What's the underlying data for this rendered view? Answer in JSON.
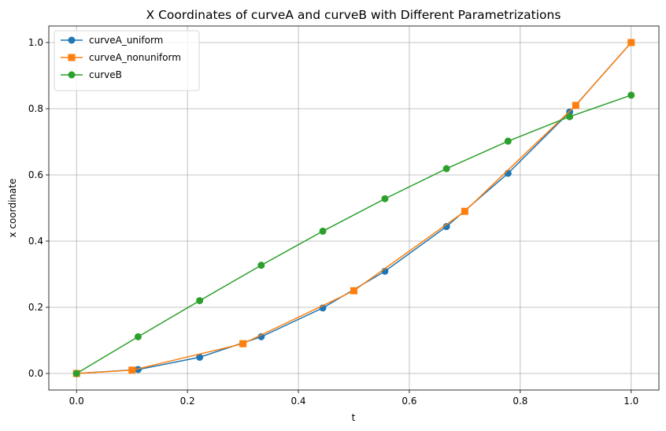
{
  "chart_data": {
    "type": "line",
    "title": "X Coordinates of curveA and curveB with Different Parametrizations",
    "xlabel": "t",
    "ylabel": "x coordinate",
    "xlim": [
      -0.05,
      1.05
    ],
    "ylim": [
      -0.05,
      1.05
    ],
    "xticks": [
      0.0,
      0.2,
      0.4,
      0.6,
      0.8,
      1.0
    ],
    "yticks": [
      0.0,
      0.2,
      0.4,
      0.6,
      0.8,
      1.0
    ],
    "xtick_labels": [
      "0.0",
      "0.2",
      "0.4",
      "0.6",
      "0.8",
      "1.0"
    ],
    "ytick_labels": [
      "0.0",
      "0.2",
      "0.4",
      "0.6",
      "0.8",
      "1.0"
    ],
    "grid": true,
    "legend": "top-left",
    "series": [
      {
        "name": "curveA_uniform",
        "color": "#1f77b4",
        "marker": "circle",
        "x": [
          0.0,
          0.111,
          0.222,
          0.333,
          0.444,
          0.556,
          0.667,
          0.778,
          0.889,
          1.0
        ],
        "y": [
          0.0,
          0.012,
          0.049,
          0.111,
          0.198,
          0.309,
          0.444,
          0.605,
          0.79,
          1.0
        ]
      },
      {
        "name": "curveA_nonuniform",
        "color": "#ff7f0e",
        "marker": "square",
        "x": [
          0.0,
          0.1,
          0.3,
          0.5,
          0.7,
          0.9,
          1.0
        ],
        "y": [
          0.0,
          0.01,
          0.09,
          0.25,
          0.49,
          0.81,
          1.0
        ]
      },
      {
        "name": "curveB",
        "color": "#2ca02c",
        "marker": "circle",
        "x": [
          0.0,
          0.111,
          0.222,
          0.333,
          0.444,
          0.556,
          0.667,
          0.778,
          0.889,
          1.0
        ],
        "y": [
          0.0,
          0.111,
          0.22,
          0.327,
          0.43,
          0.528,
          0.619,
          0.702,
          0.776,
          0.841
        ]
      }
    ]
  }
}
